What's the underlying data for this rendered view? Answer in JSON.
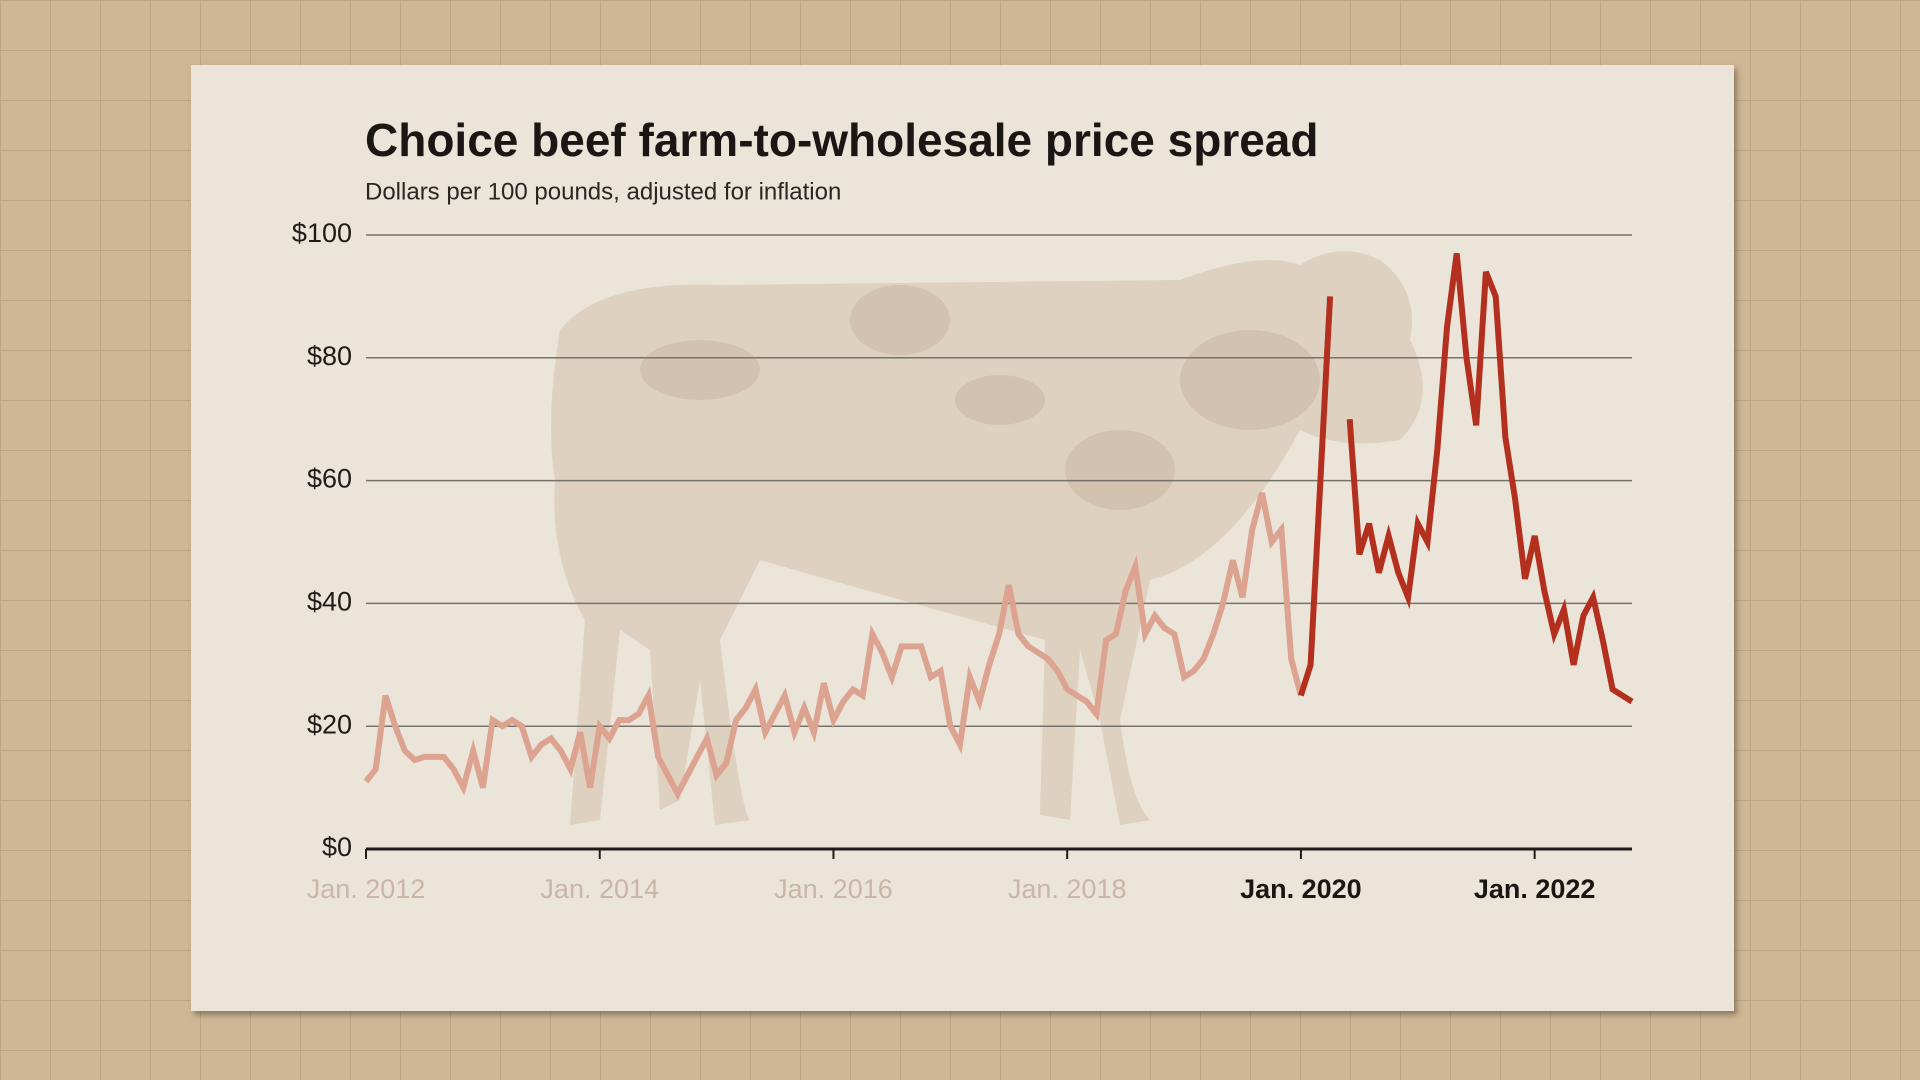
{
  "chart_data": {
    "type": "line",
    "title": "Choice beef farm-to-wholesale price spread",
    "subtitle": "Dollars per 100 pounds, adjusted for inflation",
    "xlim": [
      2012,
      2022.833
    ],
    "xticks": [
      {
        "value": 2012,
        "label": "Jan. 2012"
      },
      {
        "value": 2014,
        "label": "Jan. 2014"
      },
      {
        "value": 2016,
        "label": "Jan. 2016"
      },
      {
        "value": 2018,
        "label": "Jan. 2018"
      },
      {
        "value": 2020,
        "label": "Jan. 2020"
      },
      {
        "value": 2022,
        "label": "Jan. 2022"
      }
    ],
    "ylim": [
      0,
      100
    ],
    "yticks": [
      {
        "value": 0,
        "label": "$0"
      },
      {
        "value": 20,
        "label": "$20"
      },
      {
        "value": 40,
        "label": "$40"
      },
      {
        "value": 60,
        "label": "$60"
      },
      {
        "value": 80,
        "label": "$80"
      },
      {
        "value": 100,
        "label": "$100"
      }
    ],
    "grid": true,
    "series": [
      {
        "color": "#dca391",
        "x": [
          2012,
          2012.083,
          2012.167,
          2012.25,
          2012.333,
          2012.417,
          2012.5,
          2012.583,
          2012.667,
          2012.75,
          2012.833,
          2012.917,
          2013,
          2013.083,
          2013.167,
          2013.25,
          2013.333,
          2013.417,
          2013.5,
          2013.583,
          2013.667,
          2013.75,
          2013.833,
          2013.917,
          2014,
          2014.083,
          2014.167,
          2014.25,
          2014.333,
          2014.417,
          2014.5,
          2014.583,
          2014.667,
          2014.75,
          2014.833,
          2014.917,
          2015,
          2015.083,
          2015.167,
          2015.25,
          2015.333,
          2015.417,
          2015.5,
          2015.583,
          2015.667,
          2015.75,
          2015.833,
          2015.917,
          2016,
          2016.083,
          2016.167,
          2016.25,
          2016.333,
          2016.417,
          2016.5,
          2016.583,
          2016.667,
          2016.75,
          2016.833,
          2016.917,
          2017,
          2017.083,
          2017.167,
          2017.25,
          2017.333,
          2017.417,
          2017.5,
          2017.583,
          2017.667,
          2017.75,
          2017.833,
          2017.917,
          2018,
          2018.083,
          2018.167,
          2018.25,
          2018.333,
          2018.417,
          2018.5,
          2018.583,
          2018.667,
          2018.75,
          2018.833,
          2018.917,
          2019,
          2019.083,
          2019.167,
          2019.25,
          2019.333,
          2019.417,
          2019.5,
          2019.583,
          2019.667,
          2019.75,
          2019.833,
          2019.917,
          2020
        ],
        "values": [
          11,
          13,
          25,
          20,
          16,
          14.5,
          15,
          15,
          15,
          13,
          10,
          16,
          10,
          21,
          20,
          21,
          20,
          15,
          17,
          18,
          16,
          13,
          19,
          10,
          20,
          18,
          21,
          21,
          22,
          25,
          15,
          12,
          9,
          12,
          15,
          18,
          12,
          14,
          21,
          23,
          26,
          19,
          22,
          25,
          19,
          23,
          19,
          27,
          21,
          24,
          26,
          25,
          35,
          32,
          28,
          33,
          33,
          33,
          28,
          29,
          20,
          17,
          28,
          24,
          30,
          35,
          43,
          35,
          33,
          32,
          31,
          29,
          26,
          25,
          24,
          22,
          34,
          35,
          42,
          46,
          35,
          38,
          36,
          35,
          28,
          29,
          31,
          35,
          40,
          47,
          41,
          52,
          58,
          50,
          52,
          31,
          25
        ]
      },
      {
        "color": "#b3301f",
        "x": [
          2020,
          2020.083,
          2020.167,
          2020.25,
          2020.333,
          2020.417,
          2020.5,
          2020.583,
          2020.667,
          2020.75,
          2020.833,
          2020.917,
          2021,
          2021.083,
          2021.167,
          2021.25,
          2021.333,
          2021.417,
          2021.5,
          2021.583,
          2021.667,
          2021.75,
          2021.833,
          2021.917,
          2022,
          2022.083,
          2022.167,
          2022.25,
          2022.333,
          2022.417,
          2022.5,
          2022.583,
          2022.667,
          2022.75,
          2022.833
        ],
        "values": [
          25,
          30,
          60,
          90,
          null,
          70,
          48,
          53,
          45,
          51,
          45,
          41,
          53,
          50,
          65,
          85,
          97,
          80,
          69,
          94,
          90,
          67,
          57,
          44,
          51,
          42,
          35,
          39,
          30,
          38,
          41,
          34,
          26,
          25,
          24
        ]
      }
    ]
  }
}
